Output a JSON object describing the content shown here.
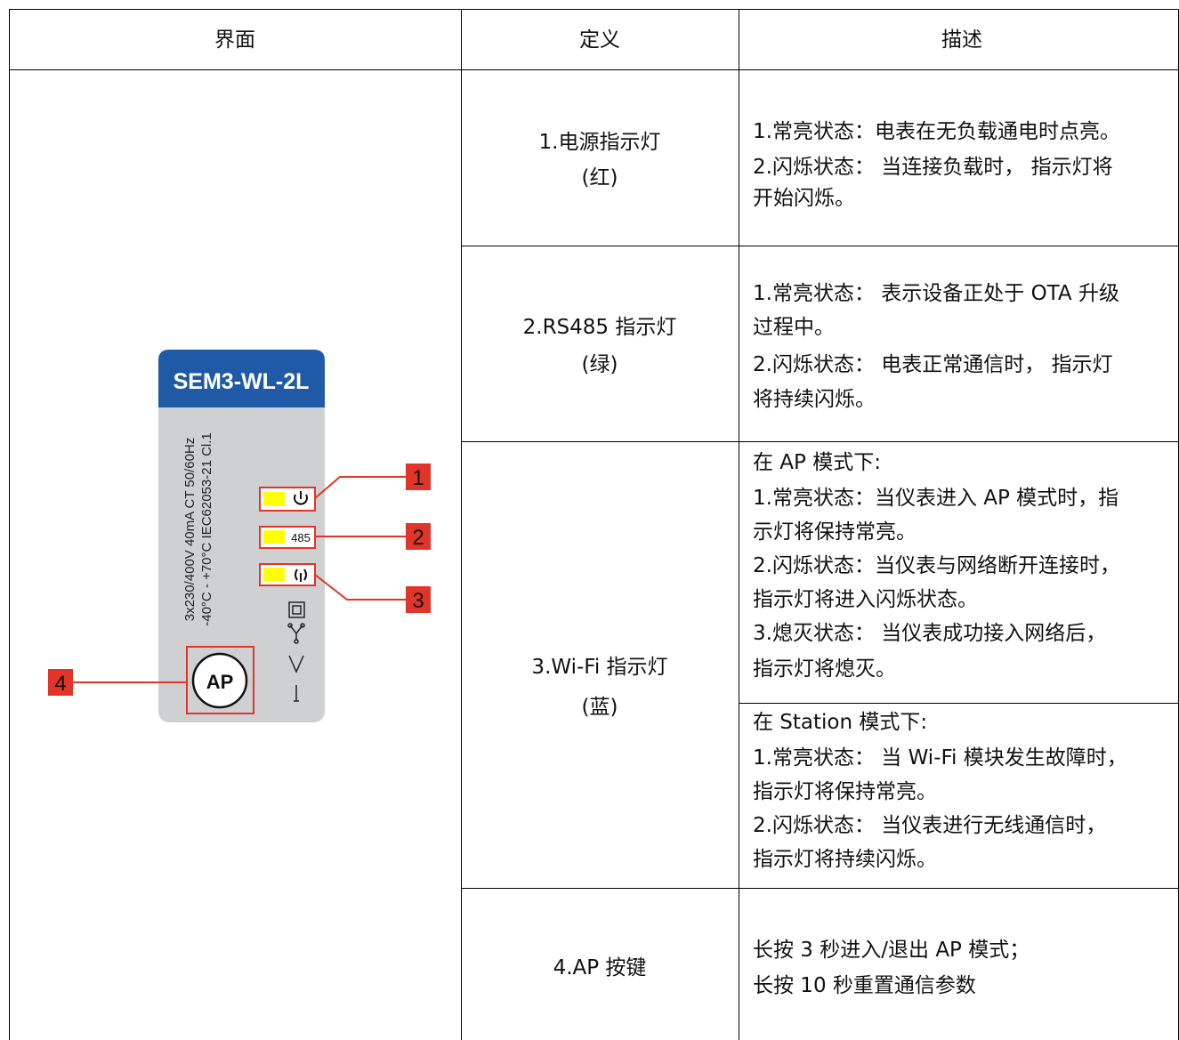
{
  "table": {
    "header": [
      "界面",
      "定义",
      "描述"
    ],
    "rows": [
      {
        "definition": [
          "1.电源指示灯",
          "(红)"
        ],
        "description": [
          [
            "1.常亮状态：电表在无负载通电时点亮。",
            "2.闪烁状态： 当连接负载时， 指示灯将",
            "开始闪烁。"
          ]
        ]
      },
      {
        "definition": [
          "2.RS485 指示灯",
          "(绿)"
        ],
        "description": [
          [
            "1.常亮状态： 表示设备正处于 OTA 升级",
            "过程中。",
            "2.闪烁状态： 电表正常通信时， 指示灯",
            "将持续闪烁。"
          ]
        ]
      },
      {
        "definition": [
          "3.Wi-Fi 指示灯",
          "(蓝)"
        ],
        "description": [
          [
            "在 AP 模式下:",
            "1.常亮状态：当仪表进入 AP 模式时，指",
            "示灯将保持常亮。",
            "2.闪烁状态：当仪表与网络断开连接时，",
            "指示灯将进入闪烁状态。",
            "3.熄灭状态： 当仪表成功接入网络后，",
            "指示灯将熄灭。"
          ],
          [
            "在 Station 模式下:",
            "1.常亮状态： 当 Wi-Fi 模块发生故障时，",
            "指示灯将保持常亮。",
            "2.闪烁状态： 当仪表进行无线通信时，",
            "指示灯将持续闪烁。"
          ]
        ]
      },
      {
        "definition": [
          "4.AP  按键"
        ],
        "description": [
          [
            "长按 3 秒进入/退出 AP 模式；",
            "长按 10 秒重置通信参数"
          ]
        ]
      }
    ]
  },
  "device": {
    "model": "SEM3-WL-2L",
    "specs": [
      "3x230/400V  40mA CT  50/60Hz",
      "-40°C - +70°C  IEC62053-21  Cl.1"
    ],
    "led_2_text": "485",
    "button": "AP",
    "callouts": [
      "1",
      "2",
      "3",
      "4"
    ]
  }
}
